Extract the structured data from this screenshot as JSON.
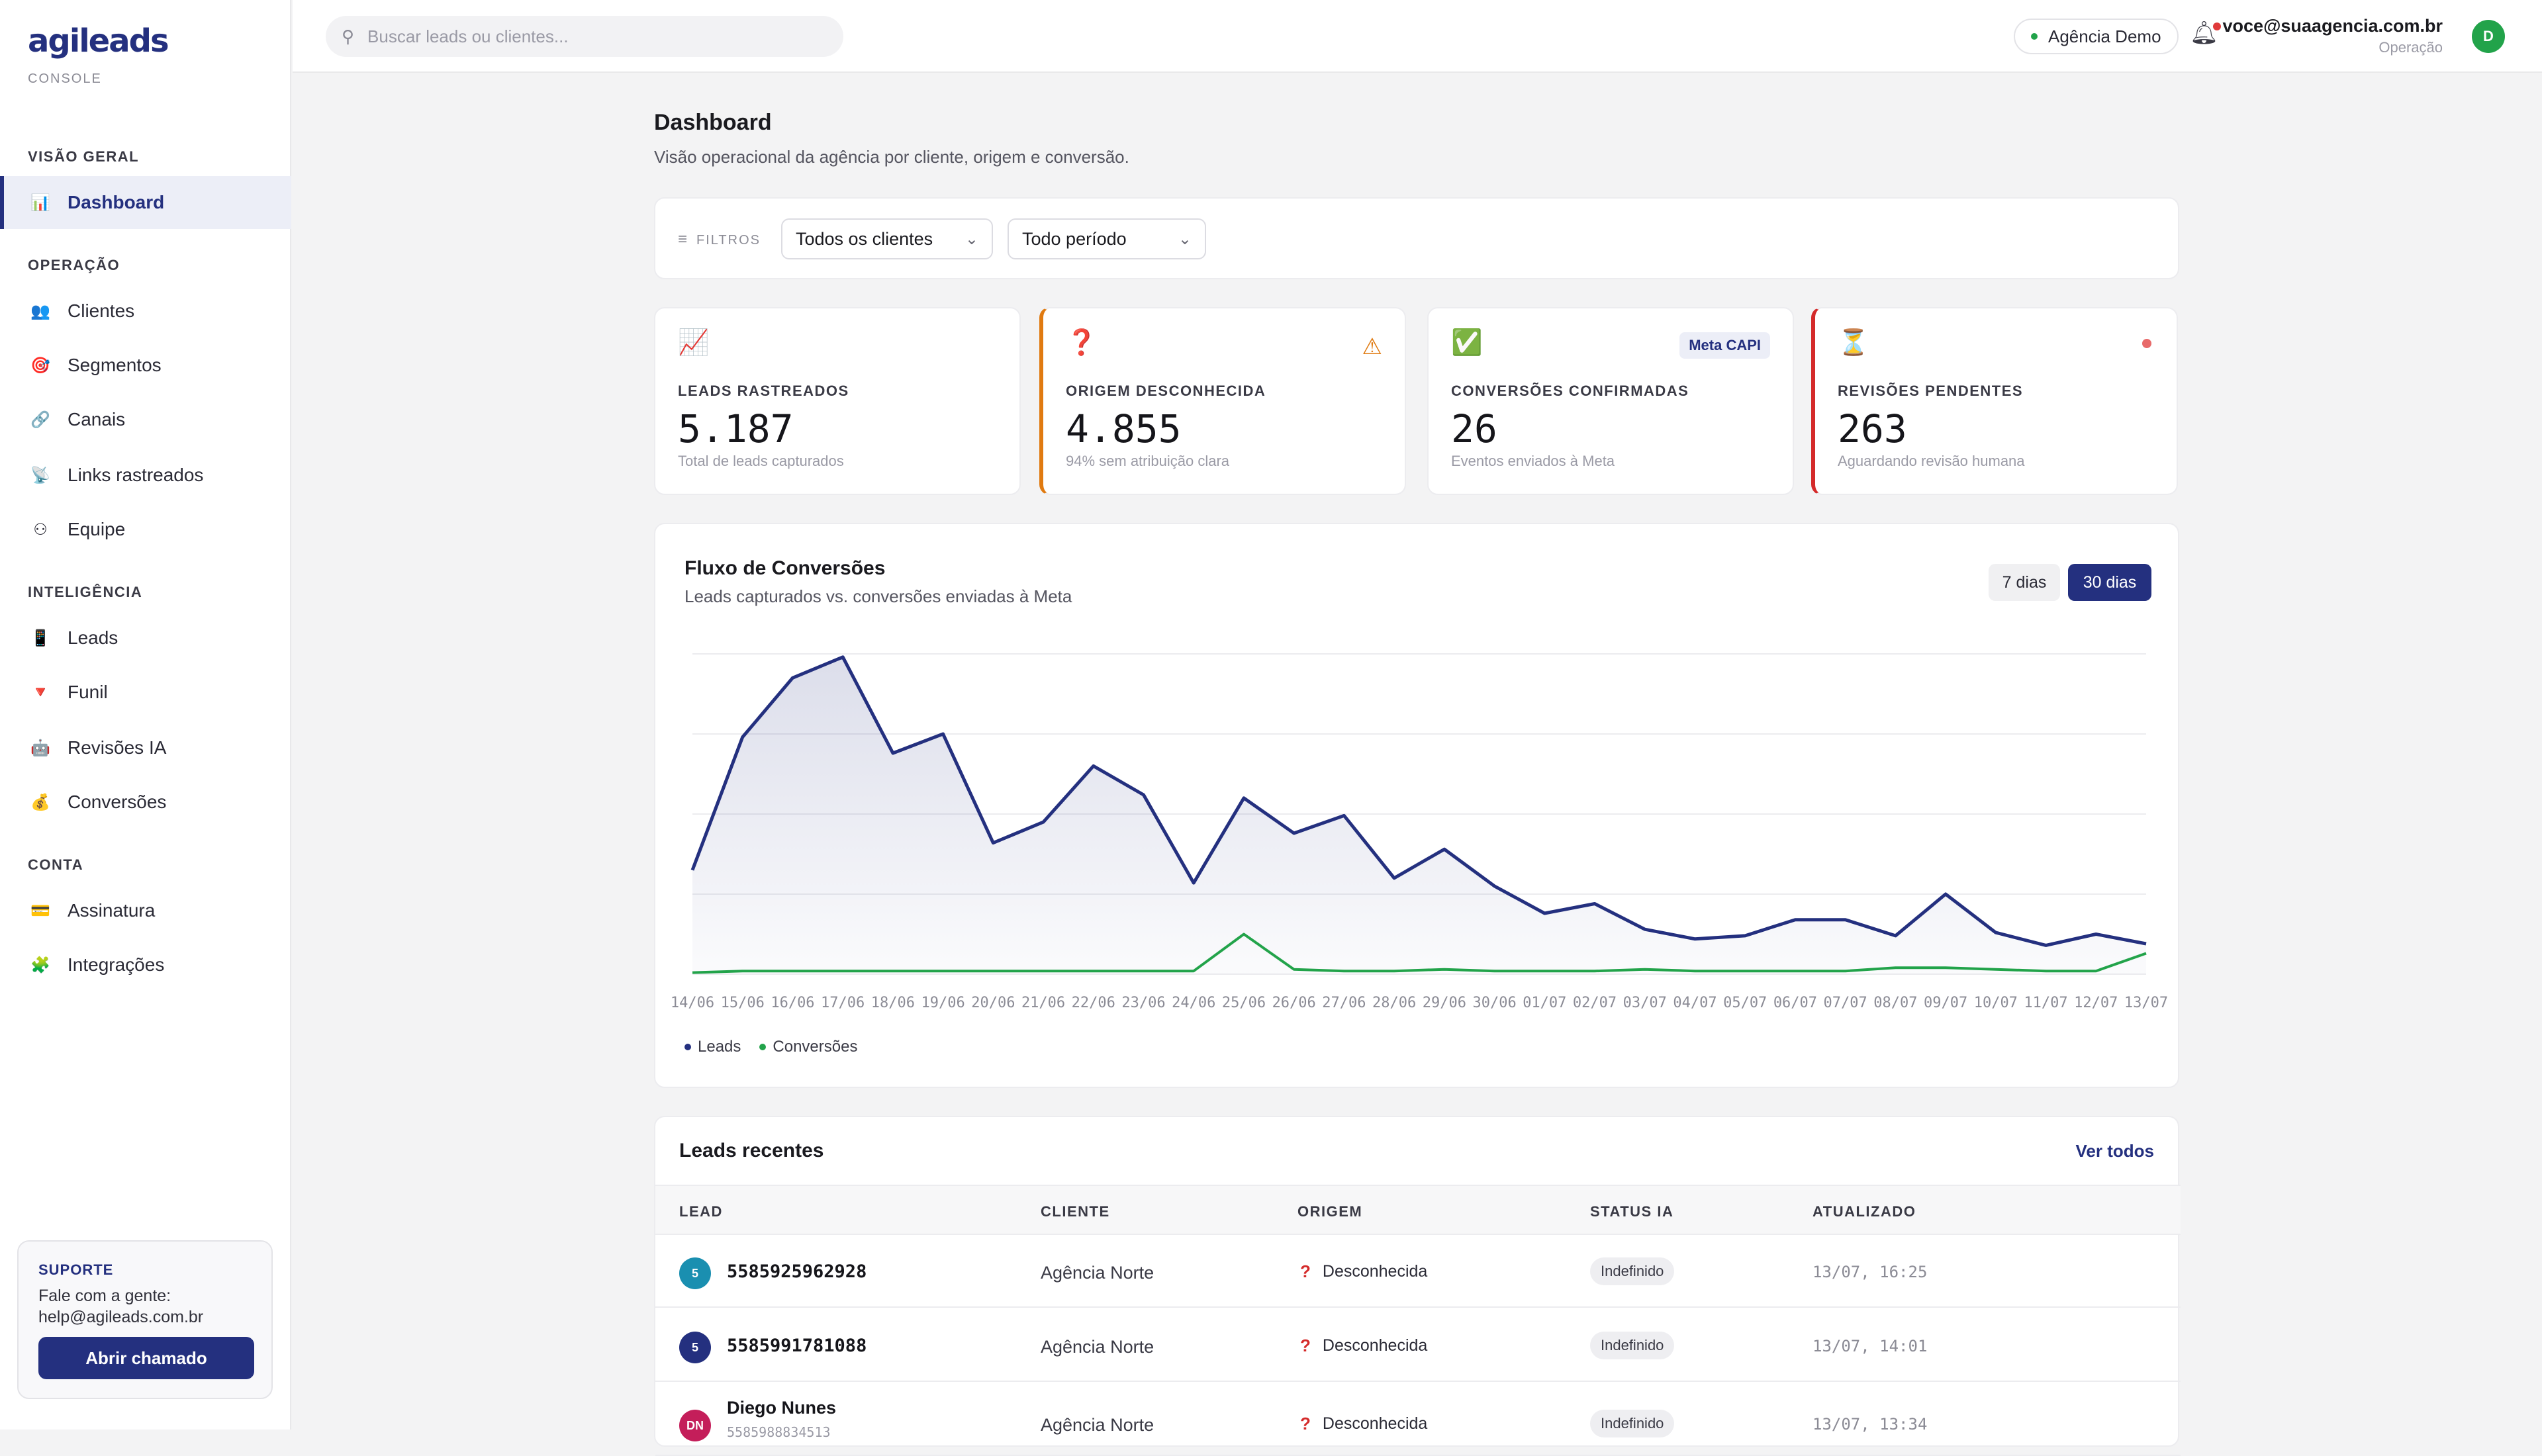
{
  "app": {
    "brand": "agileads",
    "brand_sub": "CONSOLE"
  },
  "sidebar": {
    "sections": [
      {
        "title": "VISÃO GERAL"
      },
      {
        "title": "OPERAÇÃO"
      },
      {
        "title": "INTELIGÊNCIA"
      },
      {
        "title": "CONTA"
      }
    ],
    "items": [
      {
        "label": "Dashboard",
        "icon": "bar-chart-icon",
        "glyph": "📊"
      },
      {
        "label": "Clientes",
        "icon": "people-icon",
        "glyph": "👥"
      },
      {
        "label": "Segmentos",
        "icon": "target-icon",
        "glyph": "🎯"
      },
      {
        "label": "Canais",
        "icon": "link-icon",
        "glyph": "🔗"
      },
      {
        "label": "Links rastreados",
        "icon": "satellite-icon",
        "glyph": "📡"
      },
      {
        "label": "Equipe",
        "icon": "team-icon",
        "glyph": "⚇"
      },
      {
        "label": "Leads",
        "icon": "phone-icon",
        "glyph": "📱"
      },
      {
        "label": "Funil",
        "icon": "funnel-icon",
        "glyph": "🔻"
      },
      {
        "label": "Revisões IA",
        "icon": "robot-icon",
        "glyph": "🤖"
      },
      {
        "label": "Conversões",
        "icon": "money-bag-icon",
        "glyph": "💰"
      },
      {
        "label": "Assinatura",
        "icon": "credit-card-icon",
        "glyph": "💳"
      },
      {
        "label": "Integrações",
        "icon": "puzzle-icon",
        "glyph": "🧩"
      }
    ],
    "support": {
      "title": "SUPORTE",
      "line1": "Fale com a gente:",
      "line2": "help@agileads.com.br",
      "button": "Abrir chamado"
    }
  },
  "topbar": {
    "search_placeholder": "Buscar leads ou clientes...",
    "agency": "Agência Demo",
    "user_email": "voce@suaagencia.com.br",
    "user_role": "Operação",
    "avatar_initial": "D"
  },
  "page": {
    "title": "Dashboard",
    "subtitle": "Visão operacional da agência por cliente, origem e conversão."
  },
  "filters": {
    "label": "FILTROS",
    "client": "Todos os clientes",
    "period": "Todo período"
  },
  "kpis": [
    {
      "label": "LEADS RASTREADOS",
      "value": "5.187",
      "sub": "Total de leads capturados",
      "icon": "chart-up-icon",
      "glyph": "📈"
    },
    {
      "label": "ORIGEM DESCONHECIDA",
      "value": "4.855",
      "sub": "94% sem atribuição clara",
      "icon": "question-icon",
      "glyph": "❓"
    },
    {
      "label": "CONVERSÕES CONFIRMADAS",
      "value": "26",
      "sub": "Eventos enviados à Meta",
      "icon": "check-icon",
      "glyph": "✅",
      "tag": "Meta CAPI"
    },
    {
      "label": "REVISÕES PENDENTES",
      "value": "263",
      "sub": "Aguardando revisão humana",
      "icon": "hourglass-icon",
      "glyph": "⏳"
    }
  ],
  "chart_data": {
    "type": "area",
    "title": "Fluxo de Conversões",
    "subtitle": "Leads capturados vs. conversões enviadas à Meta",
    "ranges": [
      "7 dias",
      "30 dias"
    ],
    "active_range": "30 dias",
    "categories": [
      "14/06",
      "15/06",
      "16/06",
      "17/06",
      "18/06",
      "19/06",
      "20/06",
      "21/06",
      "22/06",
      "23/06",
      "24/06",
      "25/06",
      "26/06",
      "27/06",
      "28/06",
      "29/06",
      "30/06",
      "01/07",
      "02/07",
      "03/07",
      "04/07",
      "05/07",
      "06/07",
      "07/07",
      "08/07",
      "09/07",
      "10/07",
      "11/07",
      "12/07",
      "13/07"
    ],
    "series": [
      {
        "name": "Leads",
        "color": "#24307f",
        "values": [
          65,
          148,
          185,
          198,
          138,
          150,
          82,
          95,
          130,
          112,
          57,
          110,
          88,
          99,
          60,
          78,
          55,
          38,
          44,
          28,
          22,
          24,
          34,
          34,
          24,
          50,
          26,
          18,
          25,
          19
        ]
      },
      {
        "name": "Conversões",
        "color": "#22a34a",
        "values": [
          1,
          2,
          2,
          2,
          2,
          2,
          2,
          2,
          2,
          2,
          2,
          25,
          3,
          2,
          2,
          3,
          2,
          2,
          2,
          3,
          2,
          2,
          2,
          2,
          4,
          4,
          3,
          2,
          2,
          13
        ]
      }
    ],
    "ylim": [
      0,
      200
    ],
    "grid": true,
    "legend": "bottom-left"
  },
  "table": {
    "title": "Leads recentes",
    "link": "Ver todos",
    "columns": [
      "LEAD",
      "CLIENTE",
      "ORIGEM",
      "STATUS IA",
      "ATUALIZADO"
    ],
    "rows": [
      {
        "avatar": "5",
        "avatar_color": "#1a8fb0",
        "lead": "5585925962928",
        "phone": "",
        "client": "Agência Norte",
        "origin": "Desconhecida",
        "status": "Indefinido",
        "updated": "13/07, 16:25"
      },
      {
        "avatar": "5",
        "avatar_color": "#24307f",
        "lead": "5585991781088",
        "phone": "",
        "client": "Agência Norte",
        "origin": "Desconhecida",
        "status": "Indefinido",
        "updated": "13/07, 14:01"
      },
      {
        "avatar": "DN",
        "avatar_color": "#c41e5a",
        "lead": "Diego Nunes",
        "phone": "5585988834513",
        "client": "Agência Norte",
        "origin": "Desconhecida",
        "status": "Indefinido",
        "updated": "13/07, 13:34"
      }
    ]
  }
}
